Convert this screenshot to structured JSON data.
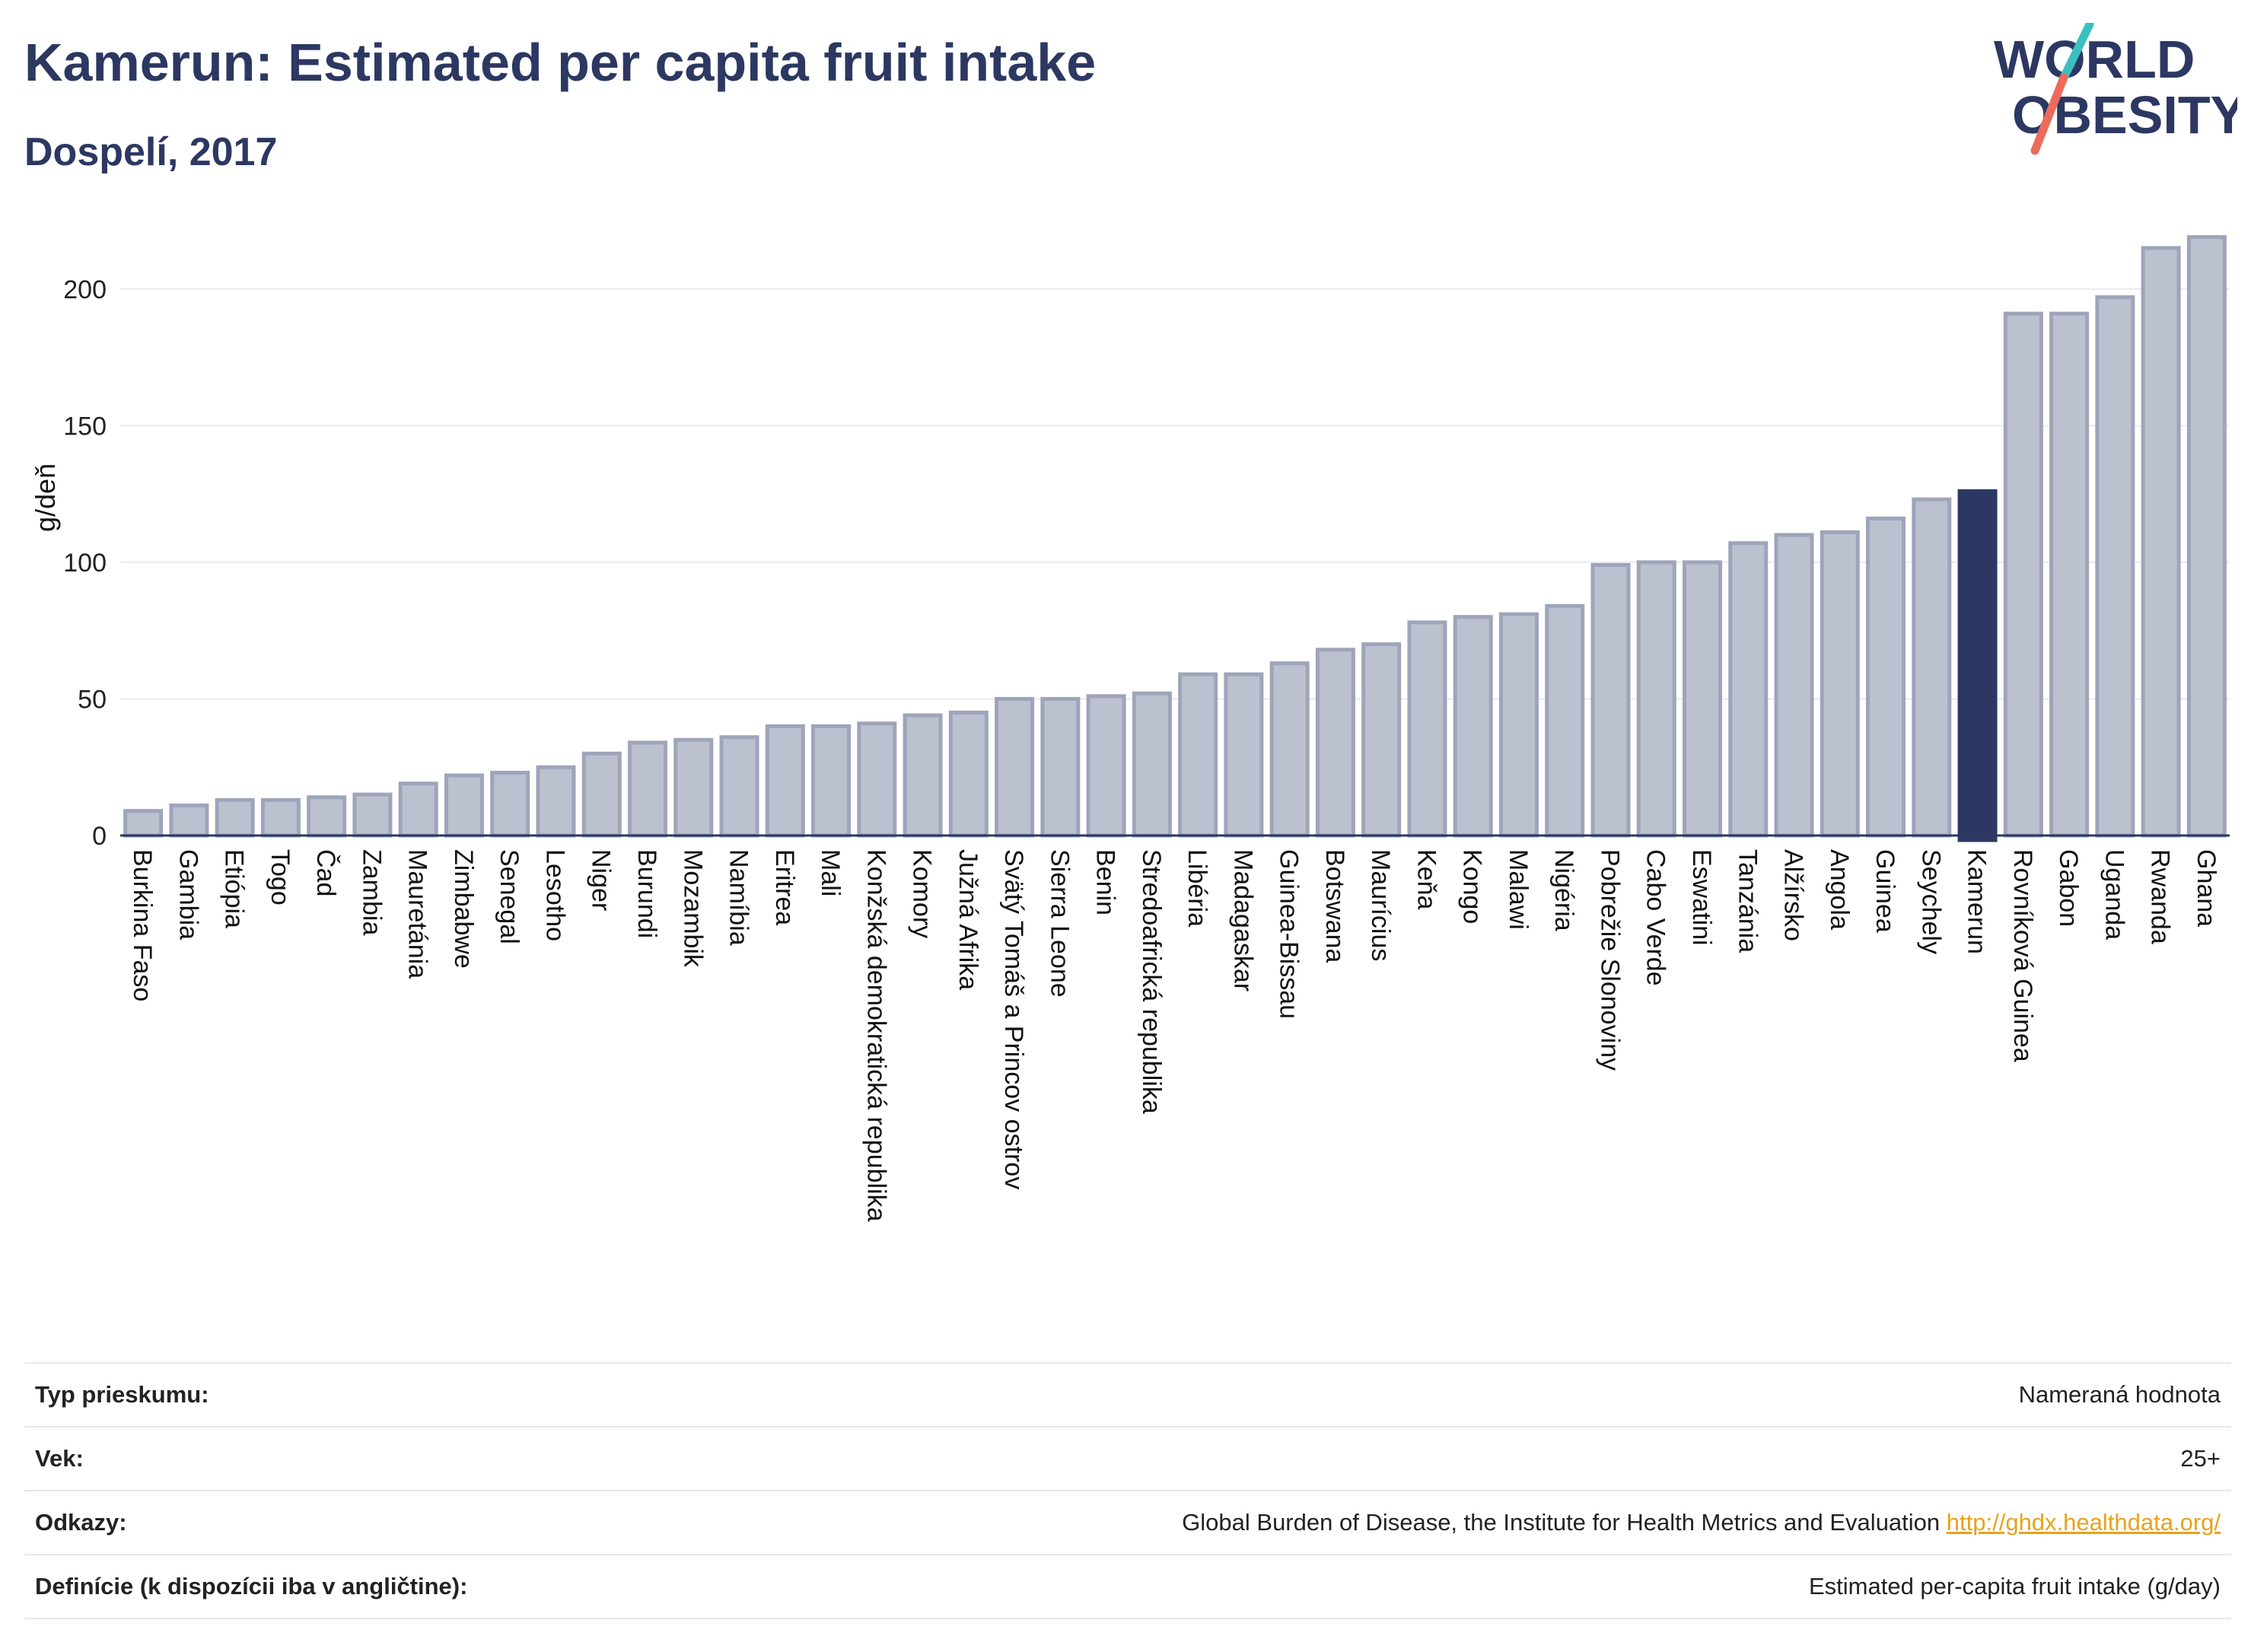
{
  "header": {
    "title": "Kamerun: Estimated per capita fruit intake",
    "subtitle": "Dospelí, 2017",
    "logo_line1": "WORLD",
    "logo_line2": "OBESITY"
  },
  "colors": {
    "brand": "#2c3862",
    "bar_fill": "#bcc1cf",
    "bar_stroke": "#9ea5ba",
    "highlight": "#2c3862",
    "logo_teal": "#3bbfc0",
    "logo_coral": "#ec6b5b",
    "link": "#e9a21b"
  },
  "chart_data": {
    "type": "bar",
    "ylabel": "g/deň",
    "ylim": [
      0,
      225
    ],
    "yticks": [
      0,
      50,
      100,
      150,
      200
    ],
    "grid": true,
    "highlight_category": "Kamerun",
    "categories": [
      "Burkina Faso",
      "Gambia",
      "Etiópia",
      "Togo",
      "Čad",
      "Zambia",
      "Mauretánia",
      "Zimbabwe",
      "Senegal",
      "Lesotho",
      "Niger",
      "Burundi",
      "Mozambik",
      "Namíbia",
      "Eritrea",
      "Mali",
      "Konžská demokratická republika",
      "Komory",
      "Južná Afrika",
      "Svätý Tomáš a Princov ostrov",
      "Sierra Leone",
      "Benin",
      "Stredoafrická republika",
      "Libéria",
      "Madagaskar",
      "Guinea-Bissau",
      "Botswana",
      "Maurícius",
      "Keňa",
      "Kongo",
      "Malawi",
      "Nigéria",
      "Pobrežie Slonoviny",
      "Cabo Verde",
      "Eswatini",
      "Tanzánia",
      "Alžírsko",
      "Angola",
      "Guinea",
      "Seychely",
      "Kamerun",
      "Rovníková Guinea",
      "Gabon",
      "Uganda",
      "Rwanda",
      "Ghana"
    ],
    "values": [
      9,
      11,
      13,
      13,
      14,
      15,
      19,
      22,
      23,
      25,
      30,
      34,
      35,
      36,
      40,
      40,
      41,
      44,
      45,
      50,
      50,
      51,
      52,
      59,
      59,
      63,
      68,
      70,
      78,
      80,
      81,
      84,
      99,
      100,
      100,
      107,
      110,
      111,
      116,
      123,
      126,
      191,
      191,
      197,
      215,
      219
    ]
  },
  "info": {
    "survey_label": "Typ prieskumu:",
    "survey_value": "Nameraná hodnota",
    "age_label": "Vek:",
    "age_value": "25+",
    "refs_label": "Odkazy:",
    "refs_value": "Global Burden of Disease, the Institute for Health Metrics and Evaluation",
    "refs_link": "http://ghdx.healthdata.org/",
    "def_label": "Definície (k dispozícii iba v angličtine):",
    "def_value": "Estimated per-capita fruit intake (g/day)"
  }
}
